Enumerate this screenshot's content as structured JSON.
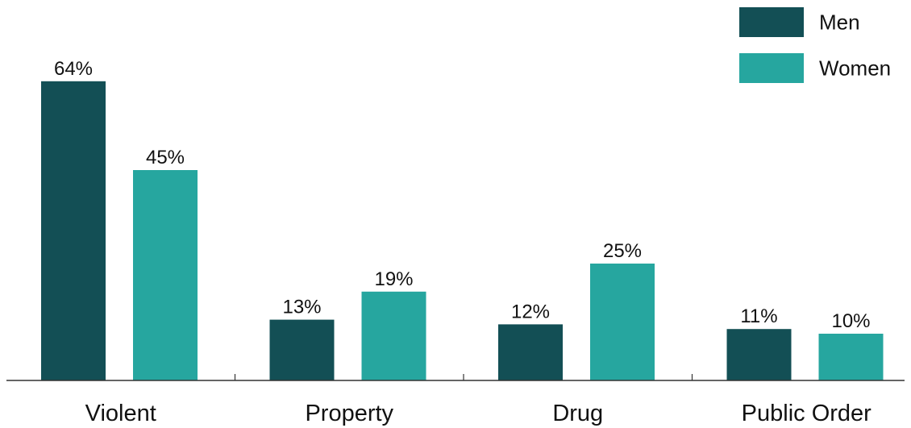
{
  "chart_data": {
    "type": "bar",
    "categories": [
      "Violent",
      "Property",
      "Drug",
      "Public Order"
    ],
    "series": [
      {
        "name": "Men",
        "values": [
          64,
          13,
          12,
          11
        ],
        "color": "#134f55"
      },
      {
        "name": "Women",
        "values": [
          45,
          19,
          25,
          10
        ],
        "color": "#26a69f"
      }
    ],
    "value_suffix": "%",
    "ylim": [
      0,
      70
    ],
    "grid": false,
    "legend_position": "top-right",
    "title": "",
    "xlabel": "",
    "ylabel": ""
  }
}
